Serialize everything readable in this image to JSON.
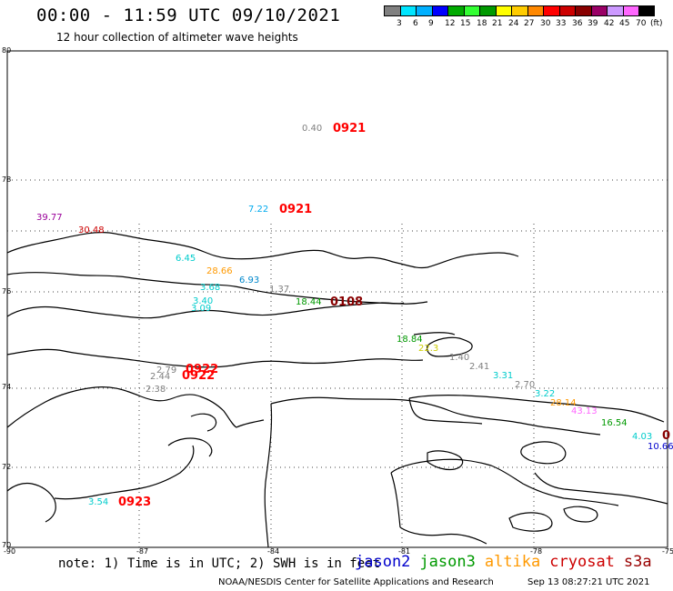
{
  "header": {
    "title": "00:00 - 11:59 UTC 09/10/2021",
    "subtitle": "12 hour collection of altimeter wave heights"
  },
  "legend": {
    "unit": "(ft)",
    "colors": [
      "#808080",
      "#00e5ff",
      "#00b0ff",
      "#0000ff",
      "#00aa00",
      "#33ff33",
      "#009900",
      "#ffff00",
      "#ffcc00",
      "#ff8800",
      "#ff0000",
      "#cc0000",
      "#880000",
      "#990066",
      "#cc99ff",
      "#ff66ff",
      "#000000"
    ],
    "labels": [
      "3",
      "6",
      "9",
      "12",
      "15",
      "18",
      "21",
      "24",
      "27",
      "30",
      "33",
      "36",
      "39",
      "42",
      "45",
      "70"
    ]
  },
  "axes": {
    "lat_labels": [
      "80",
      "78",
      "76",
      "74",
      "72",
      "70"
    ],
    "lon_labels": [
      "-90",
      "-87",
      "-84",
      "-81",
      "-78",
      "-75"
    ]
  },
  "observations": [
    {
      "value": "0.40",
      "color": "#808080"
    },
    {
      "value": "7.22",
      "color": "#00aaee"
    },
    {
      "value": "39.77",
      "color": "#990099"
    },
    {
      "value": "30.48",
      "color": "#cc0000"
    },
    {
      "value": "6.45",
      "color": "#00cccc"
    },
    {
      "value": "28.66",
      "color": "#ff9900"
    },
    {
      "value": "6.93",
      "color": "#0088cc"
    },
    {
      "value": "3.68",
      "color": "#00cccc"
    },
    {
      "value": "1.37",
      "color": "#808080"
    },
    {
      "value": "3.40",
      "color": "#00cccc"
    },
    {
      "value": "3.09",
      "color": "#00cccc"
    },
    {
      "value": "18.44",
      "color": "#009900"
    },
    {
      "value": "18.84",
      "color": "#009900"
    },
    {
      "value": "22.3",
      "color": "#cccc00"
    },
    {
      "value": "1.40",
      "color": "#808080"
    },
    {
      "value": "2.41",
      "color": "#808080"
    },
    {
      "value": "3.31",
      "color": "#00cccc"
    },
    {
      "value": "2.70",
      "color": "#808080"
    },
    {
      "value": "3.22",
      "color": "#00cccc"
    },
    {
      "value": "28.14",
      "color": "#ff9900"
    },
    {
      "value": "43.13",
      "color": "#ff66ff"
    },
    {
      "value": "16.54",
      "color": "#009900"
    },
    {
      "value": "4.03",
      "color": "#00cccc"
    },
    {
      "value": "10.66",
      "color": "#0000cc"
    },
    {
      "value": "2.79",
      "color": "#808080"
    },
    {
      "value": "2.44",
      "color": "#808080"
    },
    {
      "value": "2.38",
      "color": "#808080"
    },
    {
      "value": "3.54",
      "color": "#00cccc"
    }
  ],
  "passes": [
    {
      "label": "0921",
      "color": "#ff0000"
    },
    {
      "label": "0921",
      "color": "#ff0000"
    },
    {
      "label": "0108",
      "color": "#880000"
    },
    {
      "label": "0922",
      "color": "#ff0000"
    },
    {
      "label": "0922",
      "color": "#ff0000"
    },
    {
      "label": "0923",
      "color": "#ff0000"
    },
    {
      "label": "0",
      "color": "#880000"
    }
  ],
  "footer": {
    "note": "note: 1) Time is in UTC; 2) SWH is in feet",
    "satellites": [
      {
        "name": "jason2",
        "color": "#0000cc"
      },
      {
        "name": "jason3",
        "color": "#009900"
      },
      {
        "name": "altika",
        "color": "#ff9900"
      },
      {
        "name": "cryosat",
        "color": "#cc0000"
      },
      {
        "name": "s3a",
        "color": "#990000"
      }
    ],
    "credit": "NOAA/NESDIS Center for Satellite Applications and Research",
    "timestamp": "Sep 13 08:27:21 UTC 2021"
  }
}
